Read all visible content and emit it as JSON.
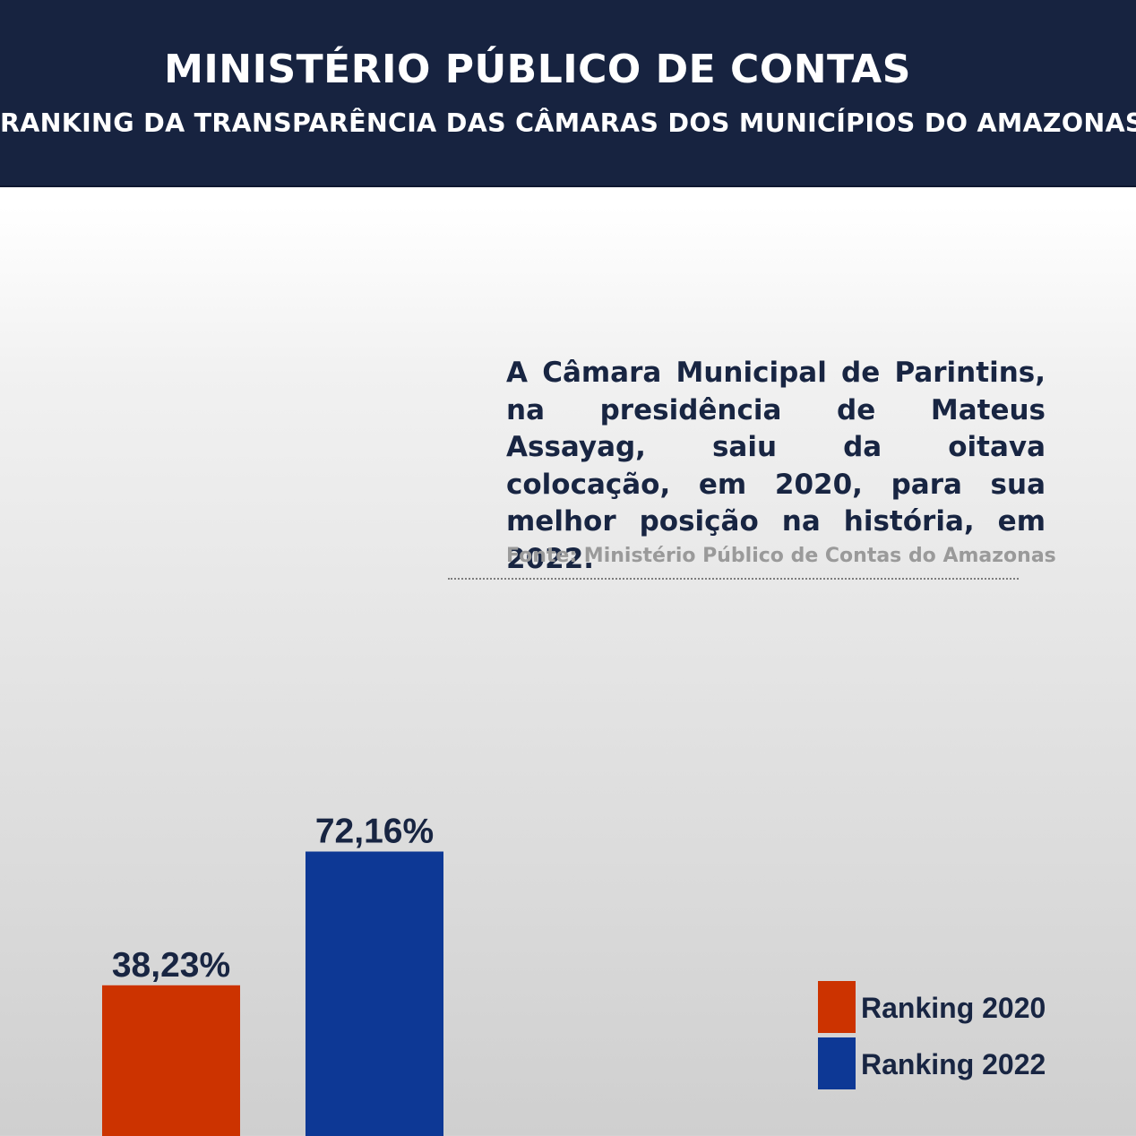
{
  "header": {
    "title": "MINISTÉRIO PÚBLICO DE CONTAS",
    "subtitle": "RANKING DA TRANSPARÊNCIA DAS CÂMARAS DOS MUNICÍPIOS DO AMAZONAS"
  },
  "description": "A Câmara Municipal de Parintins, na presidência de Mateus Assayag, saiu da oitava colocação, em 2020, para sua melhor posição na história, em 2022.",
  "source": "Fonte:  Ministério Público de Contas do Amazonas",
  "colors": {
    "header_bg": "#172340",
    "text_dark": "#182542",
    "bar_2020": "#cc3300",
    "bar_2022": "#0d3895"
  },
  "chart_data": {
    "type": "bar",
    "title": "RANKING DA TRANSPARÊNCIA DAS CÂMARAS DOS MUNICÍPIOS DO AMAZONAS",
    "categories": [
      "Ranking 2020",
      "Ranking 2022"
    ],
    "values": [
      38.23,
      72.16
    ],
    "value_labels": [
      "38,23%",
      "72,16%"
    ],
    "colors": [
      "#cc3300",
      "#0d3895"
    ],
    "ylim": [
      0,
      100
    ],
    "xlabel": "",
    "ylabel": "",
    "grid": false,
    "legend_position": "bottom-right"
  },
  "legend": {
    "items": [
      {
        "label": "Ranking 2020",
        "color": "#cc3300"
      },
      {
        "label": "Ranking 2022",
        "color": "#0d3895"
      }
    ]
  }
}
